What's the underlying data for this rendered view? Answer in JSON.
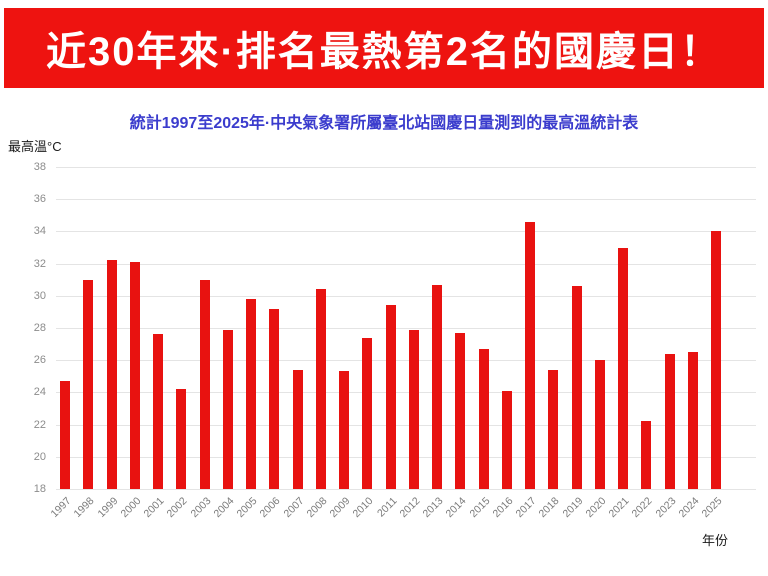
{
  "banner": {
    "title": "近30年來·排名最熱第2名的國慶日！"
  },
  "chart": {
    "title": "統計1997至2025年·中央氣象署所屬臺北站國慶日量測到的最高溫統計表",
    "y_unit_label": "最高溫°C",
    "x_axis_label": "年份"
  },
  "colors": {
    "banner_bg": "#ee1310",
    "banner_text": "#ffffff",
    "title_text": "#3b3ccd",
    "bar": "#e81210",
    "tick_text": "#8c8c8c",
    "gridline": "#e4e4e4"
  },
  "chart_data": {
    "type": "bar",
    "title": "統計1997至2025年·中央氣象署所屬臺北站國慶日量測到的最高溫統計表",
    "xlabel": "年份",
    "ylabel": "最高溫°C",
    "ylim": [
      18,
      38
    ],
    "ytick_step": 2,
    "grid": true,
    "legend": false,
    "bar_color": "#e81210",
    "categories": [
      "1997",
      "1998",
      "1999",
      "2000",
      "2001",
      "2002",
      "2003",
      "2004",
      "2005",
      "2006",
      "2007",
      "2008",
      "2009",
      "2010",
      "2011",
      "2012",
      "2013",
      "2014",
      "2015",
      "2016",
      "2017",
      "2018",
      "2019",
      "2020",
      "2021",
      "2022",
      "2023",
      "2024",
      "2025"
    ],
    "values": [
      24.7,
      31.0,
      32.2,
      32.1,
      27.6,
      24.2,
      31.0,
      27.9,
      29.8,
      29.2,
      25.4,
      30.4,
      25.3,
      27.4,
      29.4,
      27.9,
      30.7,
      27.7,
      26.7,
      24.1,
      34.6,
      25.4,
      30.6,
      26.0,
      33.0,
      22.2,
      26.4,
      26.5,
      34.0
    ]
  }
}
